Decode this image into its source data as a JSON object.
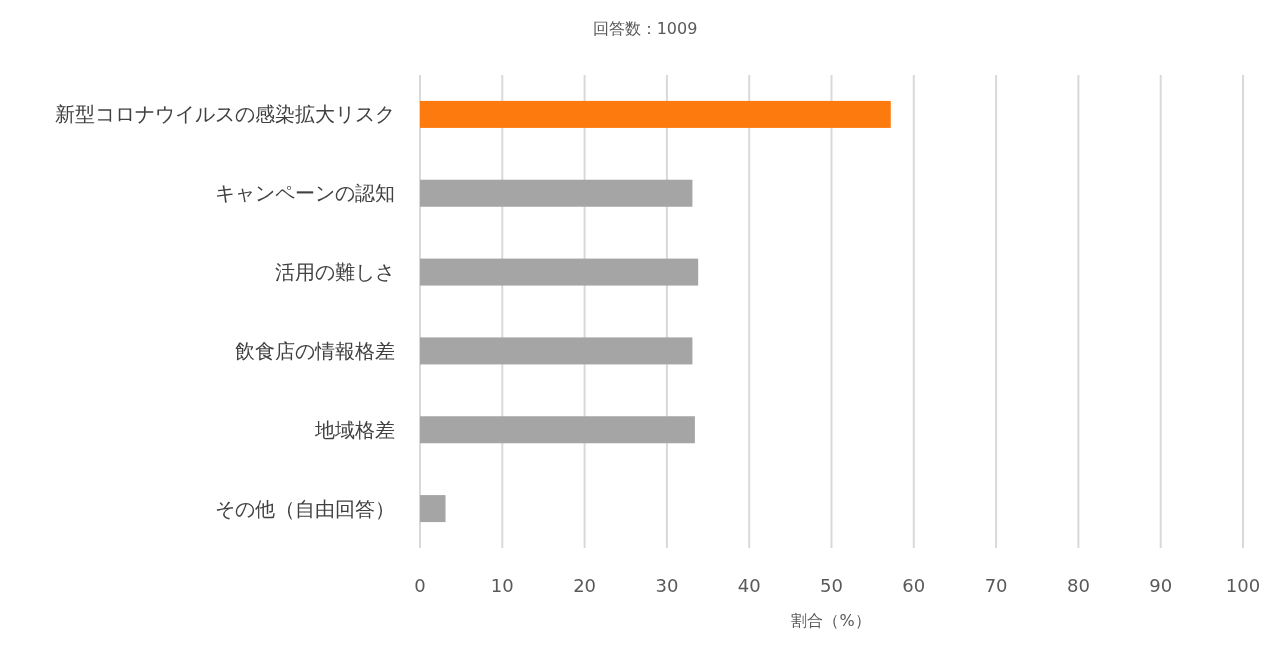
{
  "chart_data": {
    "type": "bar",
    "orientation": "horizontal",
    "title": "回答数：1009",
    "xlabel": "割合（%）",
    "categories": [
      "新型コロナウイルスの感染拡大リスク",
      "キャンペーンの認知",
      "活用の難しさ",
      "飲食店の情報格差",
      "地域格差",
      "その他（自由回答）"
    ],
    "values": [
      57.2,
      33.1,
      33.8,
      33.1,
      33.4,
      3.1
    ],
    "colors": [
      "#fd7a0e",
      "#a5a5a5",
      "#a5a5a5",
      "#a5a5a5",
      "#a5a5a5",
      "#a5a5a5"
    ],
    "xlim": [
      0,
      100
    ],
    "xticks": [
      0,
      10,
      20,
      30,
      40,
      50,
      60,
      70,
      80,
      90,
      100
    ],
    "grid": "x"
  }
}
